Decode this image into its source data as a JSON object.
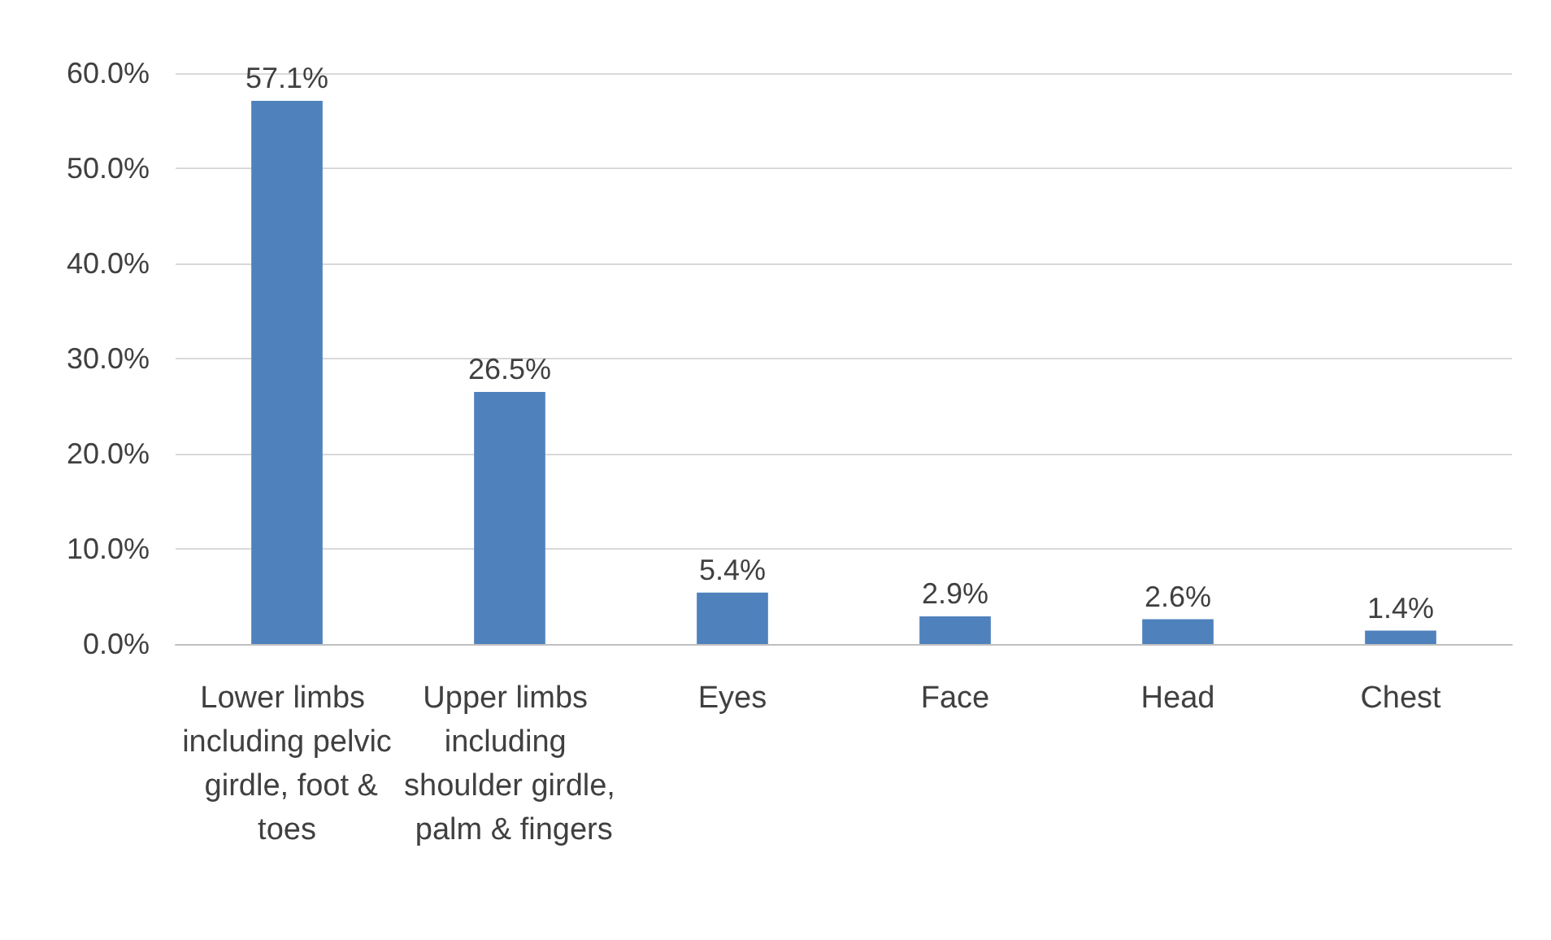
{
  "chart_data": {
    "type": "bar",
    "categories": [
      "Lower limbs including pelvic  girdle, foot & toes",
      "Upper limbs including shoulder girdle, palm & fingers",
      "Eyes",
      "Face",
      "Head",
      "Chest"
    ],
    "values": [
      57.1,
      26.5,
      5.4,
      2.9,
      2.6,
      1.4
    ],
    "value_labels": [
      "57.1%",
      "26.5%",
      "5.4%",
      "2.9%",
      "2.6%",
      "1.4%"
    ],
    "color": "#4f81bd",
    "ylim": [
      0,
      60
    ],
    "yticks": [
      {
        "value": 0,
        "label": "0.0%"
      },
      {
        "value": 10,
        "label": "10.0%"
      },
      {
        "value": 20,
        "label": "20.0%"
      },
      {
        "value": 30,
        "label": "30.0%"
      },
      {
        "value": 40,
        "label": "40.0%"
      },
      {
        "value": 50,
        "label": "50.0%"
      },
      {
        "value": 60,
        "label": "60.0%"
      }
    ],
    "grid": "y"
  }
}
